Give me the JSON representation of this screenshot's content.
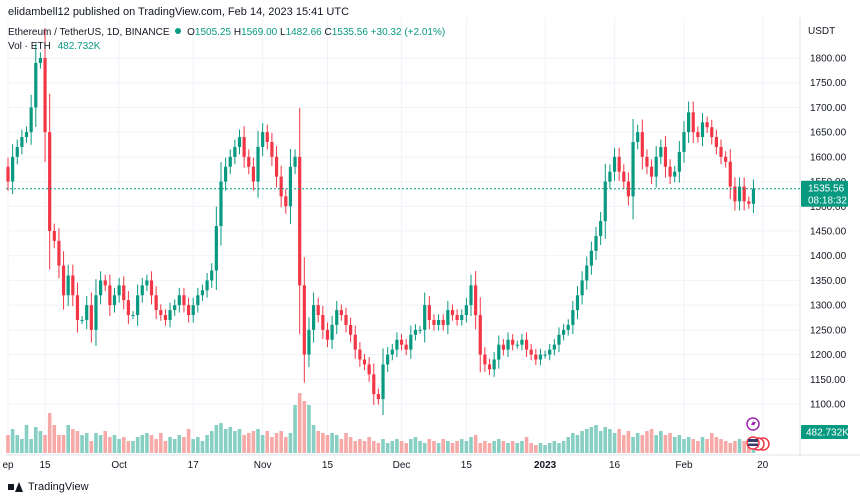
{
  "publish_line": "elidambell12 published on TradingView.com, Feb 14, 2023 15:41 UTC",
  "legend": {
    "symbol": "Ethereum / TetherUS, 1D, BINANCE",
    "o_label": "O",
    "o_value": "1505.25",
    "h_label": "H",
    "h_value": "1569.00",
    "l_label": "L",
    "l_value": "1482.66",
    "c_label": "C",
    "c_value": "1535.56",
    "change": "+30.32 (+2.01%)",
    "volume_label": "Vol · ETH",
    "volume_value": "482.732K"
  },
  "footer": {
    "brand": "TradingView"
  },
  "colors": {
    "up": "#089981",
    "down": "#f23645",
    "up_vol": "#86cfc2",
    "down_vol": "#f7a9a7",
    "grid": "#f0f3fa",
    "price_line": "#089981"
  },
  "chart_data": {
    "type": "candlestick",
    "title": "Ethereum / TetherUS, 1D, BINANCE",
    "ylabel": "USDT",
    "ylim": [
      1050,
      1850
    ],
    "y_ticks": [
      "1800.00",
      "1750.00",
      "1700.00",
      "1650.00",
      "1600.00",
      "1550.00",
      "1500.00",
      "1450.00",
      "1400.00",
      "1350.00",
      "1300.00",
      "1250.00",
      "1200.00",
      "1150.00",
      "1100.00"
    ],
    "x_ticks": [
      {
        "i": 0,
        "label": "ep"
      },
      {
        "i": 8,
        "label": "15"
      },
      {
        "i": 24,
        "label": "Oct"
      },
      {
        "i": 40,
        "label": "17"
      },
      {
        "i": 55,
        "label": "Nov"
      },
      {
        "i": 69,
        "label": "15"
      },
      {
        "i": 85,
        "label": "Dec"
      },
      {
        "i": 99,
        "label": "15"
      },
      {
        "i": 116,
        "label": "2023"
      },
      {
        "i": 131,
        "label": "16"
      },
      {
        "i": 146,
        "label": "Feb"
      },
      {
        "i": 163,
        "label": "20"
      }
    ],
    "last_price": "1535.56",
    "countdown": "08:18:32",
    "volume_last": "482.732K",
    "start_open": 1580,
    "closes": [
      1550,
      1600,
      1620,
      1640,
      1650,
      1700,
      1790,
      1800,
      1650,
      1450,
      1430,
      1380,
      1320,
      1360,
      1320,
      1270,
      1270,
      1300,
      1250,
      1320,
      1350,
      1340,
      1300,
      1320,
      1340,
      1310,
      1280,
      1280,
      1320,
      1340,
      1350,
      1320,
      1290,
      1280,
      1270,
      1290,
      1300,
      1320,
      1300,
      1280,
      1300,
      1320,
      1330,
      1350,
      1370,
      1460,
      1550,
      1580,
      1600,
      1620,
      1640,
      1600,
      1580,
      1550,
      1620,
      1650,
      1630,
      1600,
      1560,
      1520,
      1500,
      1580,
      1600,
      1340,
      1200,
      1250,
      1300,
      1280,
      1250,
      1230,
      1260,
      1290,
      1280,
      1260,
      1240,
      1210,
      1190,
      1180,
      1160,
      1120,
      1110,
      1180,
      1200,
      1210,
      1230,
      1220,
      1210,
      1240,
      1250,
      1250,
      1300,
      1270,
      1260,
      1270,
      1260,
      1290,
      1280,
      1270,
      1280,
      1300,
      1340,
      1280,
      1200,
      1180,
      1170,
      1190,
      1220,
      1210,
      1230,
      1220,
      1220,
      1230,
      1210,
      1200,
      1190,
      1200,
      1200,
      1210,
      1220,
      1240,
      1250,
      1260,
      1290,
      1320,
      1350,
      1380,
      1410,
      1440,
      1470,
      1550,
      1570,
      1600,
      1570,
      1550,
      1520,
      1630,
      1650,
      1600,
      1580,
      1560,
      1600,
      1620,
      1580,
      1560,
      1570,
      1610,
      1650,
      1690,
      1650,
      1640,
      1670,
      1660,
      1640,
      1620,
      1600,
      1590,
      1540,
      1510,
      1540,
      1510,
      1505,
      1535.56
    ],
    "volumes": [
      45,
      60,
      45,
      35,
      70,
      35,
      65,
      55,
      45,
      100,
      70,
      45,
      45,
      70,
      60,
      55,
      45,
      50,
      30,
      50,
      45,
      55,
      40,
      45,
      35,
      40,
      30,
      30,
      40,
      45,
      50,
      45,
      35,
      50,
      30,
      40,
      35,
      45,
      40,
      60,
      35,
      40,
      30,
      45,
      55,
      70,
      75,
      60,
      65,
      55,
      60,
      45,
      50,
      55,
      60,
      45,
      55,
      40,
      50,
      55,
      40,
      50,
      120,
      150,
      130,
      120,
      70,
      55,
      50,
      45,
      50,
      45,
      35,
      50,
      40,
      30,
      35,
      30,
      40,
      30,
      25,
      35,
      25,
      30,
      35,
      30,
      25,
      35,
      40,
      30,
      25,
      35,
      30,
      25,
      35,
      30,
      25,
      30,
      35,
      30,
      40,
      45,
      25,
      30,
      25,
      30,
      35,
      30,
      25,
      30,
      25,
      30,
      40,
      25,
      20,
      25,
      20,
      25,
      30,
      25,
      30,
      40,
      50,
      45,
      55,
      60,
      65,
      70,
      55,
      65,
      60,
      50,
      60,
      45,
      55,
      40,
      50,
      45,
      55,
      60,
      45,
      55,
      45,
      50,
      40,
      45,
      35,
      40,
      35,
      30,
      40,
      35,
      50,
      40,
      35,
      30,
      25,
      30,
      35,
      30,
      25,
      25
    ]
  }
}
